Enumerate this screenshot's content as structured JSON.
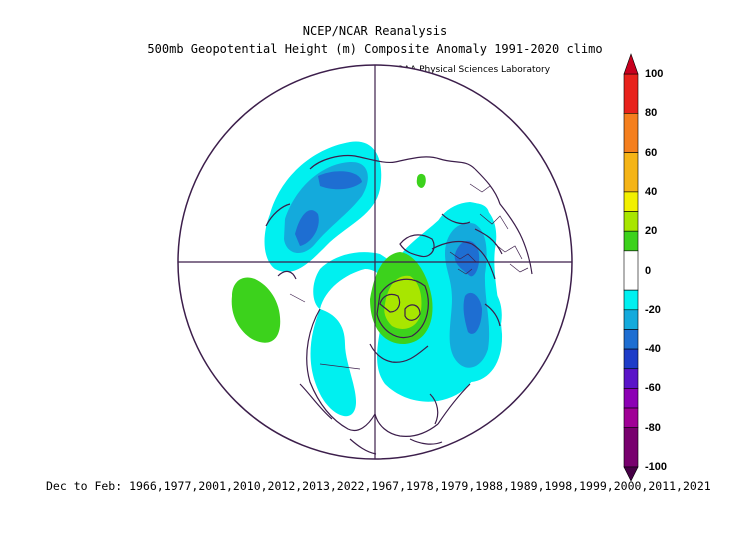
{
  "titles": {
    "line1": "NCEP/NCAR Reanalysis",
    "line2": "500mb Geopotential Height (m) Composite Anomaly 1991-2020 climo",
    "credit": "NOAA Physical Sciences Laboratory"
  },
  "footer": "Dec to Feb: 1966,1977,2001,2010,2012,2013,2022,1967,1978,1979,1988,1989,1998,1999,2000,2011,2021",
  "colorbar": {
    "labels": [
      "100",
      "80",
      "60",
      "40",
      "20",
      "0",
      "-20",
      "-40",
      "-60",
      "-80",
      "-100"
    ],
    "colors": {
      "above_100": "#c8001e",
      "80_100": "#e8221c",
      "60_80": "#f57f1e",
      "40_60": "#f5b417",
      "30_40": "#f2f000",
      "20_30": "#a8e600",
      "10_20": "#3cd21c",
      "-10_10": "#ffffff",
      "-20_-10": "#00f0f0",
      "-30_-20": "#14aadc",
      "-40_-30": "#1e6ed2",
      "-50_-40": "#1e3cc8",
      "-60_-50": "#5a14c8",
      "-70_-60": "#8c00b4",
      "-80_-70": "#a00096",
      "-100_-80": "#78006e",
      "below_-100": "#460046"
    }
  },
  "map": {
    "projection": "north polar stereographic",
    "coast_color": "#3c1e4b"
  }
}
